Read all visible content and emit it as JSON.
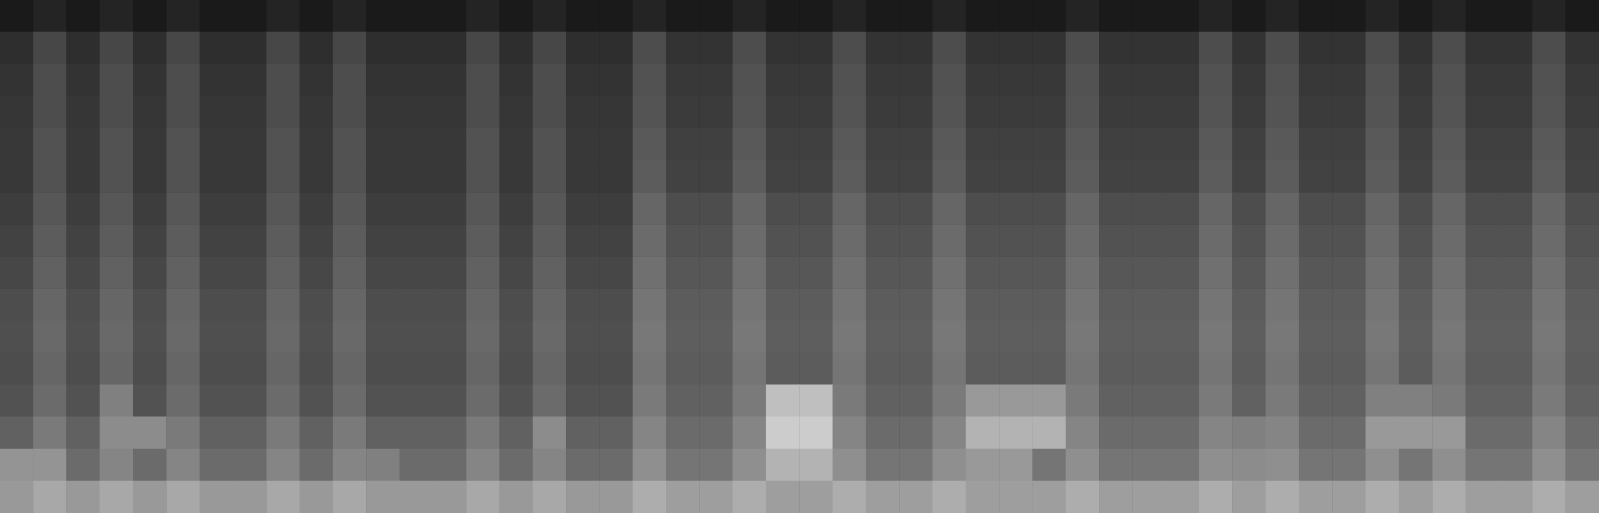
{
  "chart_data": {
    "type": "heatmap",
    "tick_labels": false,
    "colorbar_range": [
      0,
      100
    ],
    "cells": [
      [
        10,
        14,
        10,
        14,
        10,
        14,
        10,
        10,
        14,
        10,
        14,
        10,
        10,
        10,
        14,
        10,
        14,
        10,
        10,
        14,
        10,
        10,
        14,
        10,
        10,
        14,
        10,
        10,
        14,
        10,
        10,
        10,
        14,
        10,
        10,
        10,
        14,
        10,
        14,
        10,
        10,
        14,
        10,
        14,
        10,
        10,
        14,
        10
      ],
      [
        18,
        28,
        18,
        28,
        18,
        28,
        18,
        18,
        28,
        18,
        28,
        18,
        18,
        18,
        28,
        18,
        28,
        18,
        18,
        30,
        20,
        20,
        30,
        20,
        20,
        30,
        20,
        20,
        30,
        20,
        20,
        20,
        30,
        20,
        20,
        20,
        30,
        20,
        30,
        20,
        20,
        30,
        20,
        30,
        20,
        20,
        30,
        20
      ],
      [
        20,
        30,
        20,
        30,
        20,
        30,
        20,
        20,
        30,
        20,
        30,
        20,
        20,
        20,
        30,
        20,
        30,
        20,
        20,
        32,
        22,
        22,
        32,
        22,
        22,
        32,
        22,
        22,
        32,
        22,
        22,
        22,
        32,
        22,
        22,
        22,
        32,
        22,
        32,
        22,
        22,
        32,
        22,
        32,
        22,
        22,
        32,
        22
      ],
      [
        21,
        30,
        21,
        30,
        21,
        30,
        21,
        21,
        30,
        21,
        30,
        21,
        21,
        21,
        30,
        21,
        30,
        21,
        21,
        33,
        23,
        23,
        33,
        23,
        23,
        33,
        23,
        23,
        33,
        23,
        23,
        23,
        33,
        23,
        23,
        23,
        33,
        23,
        33,
        23,
        23,
        33,
        23,
        33,
        23,
        23,
        33,
        23
      ],
      [
        22,
        32,
        22,
        32,
        22,
        32,
        22,
        22,
        32,
        22,
        32,
        22,
        22,
        22,
        32,
        22,
        32,
        22,
        22,
        35,
        25,
        25,
        35,
        25,
        25,
        35,
        25,
        25,
        35,
        25,
        25,
        25,
        35,
        25,
        25,
        25,
        35,
        25,
        35,
        25,
        25,
        35,
        25,
        35,
        25,
        25,
        35,
        25
      ],
      [
        22,
        32,
        22,
        32,
        22,
        32,
        22,
        22,
        32,
        22,
        32,
        22,
        22,
        22,
        32,
        22,
        32,
        22,
        22,
        36,
        26,
        26,
        36,
        26,
        26,
        36,
        26,
        26,
        36,
        26,
        26,
        26,
        36,
        26,
        26,
        26,
        36,
        26,
        36,
        26,
        26,
        36,
        26,
        36,
        26,
        26,
        36,
        26
      ],
      [
        24,
        34,
        24,
        34,
        24,
        34,
        24,
        24,
        34,
        24,
        34,
        24,
        24,
        24,
        34,
        24,
        34,
        24,
        24,
        40,
        30,
        30,
        40,
        30,
        30,
        40,
        30,
        30,
        40,
        30,
        30,
        30,
        40,
        30,
        30,
        30,
        40,
        30,
        40,
        30,
        30,
        40,
        30,
        40,
        30,
        30,
        40,
        30
      ],
      [
        26,
        36,
        26,
        36,
        26,
        36,
        26,
        26,
        36,
        26,
        36,
        26,
        26,
        26,
        36,
        26,
        36,
        26,
        26,
        42,
        32,
        32,
        42,
        32,
        32,
        42,
        32,
        32,
        42,
        32,
        32,
        32,
        42,
        32,
        32,
        32,
        42,
        32,
        42,
        32,
        32,
        42,
        32,
        42,
        32,
        32,
        42,
        32
      ],
      [
        28,
        38,
        28,
        38,
        28,
        38,
        28,
        28,
        38,
        28,
        38,
        28,
        28,
        28,
        38,
        28,
        38,
        28,
        28,
        44,
        34,
        34,
        44,
        34,
        34,
        44,
        34,
        34,
        44,
        34,
        34,
        34,
        44,
        34,
        34,
        34,
        44,
        34,
        44,
        34,
        34,
        44,
        34,
        44,
        34,
        34,
        44,
        34
      ],
      [
        30,
        40,
        30,
        40,
        30,
        40,
        30,
        30,
        40,
        30,
        40,
        30,
        30,
        30,
        40,
        30,
        40,
        30,
        30,
        46,
        36,
        36,
        46,
        36,
        36,
        46,
        36,
        36,
        46,
        36,
        36,
        36,
        46,
        36,
        36,
        36,
        46,
        36,
        46,
        36,
        36,
        46,
        36,
        46,
        36,
        36,
        46,
        36
      ],
      [
        31,
        41,
        31,
        41,
        31,
        41,
        31,
        31,
        41,
        31,
        41,
        31,
        31,
        31,
        41,
        31,
        41,
        31,
        31,
        47,
        37,
        37,
        47,
        37,
        37,
        47,
        37,
        37,
        47,
        37,
        37,
        37,
        47,
        37,
        37,
        37,
        47,
        37,
        47,
        37,
        37,
        47,
        37,
        47,
        37,
        37,
        47,
        37
      ],
      [
        30,
        40,
        30,
        40,
        30,
        40,
        30,
        30,
        40,
        30,
        40,
        30,
        30,
        30,
        40,
        30,
        40,
        30,
        30,
        46,
        36,
        36,
        46,
        36,
        36,
        46,
        36,
        36,
        46,
        36,
        36,
        36,
        46,
        36,
        36,
        36,
        46,
        36,
        46,
        36,
        36,
        46,
        36,
        46,
        36,
        36,
        46,
        36
      ],
      [
        32,
        42,
        32,
        50,
        32,
        42,
        32,
        32,
        42,
        32,
        42,
        32,
        32,
        32,
        42,
        32,
        42,
        32,
        32,
        48,
        38,
        38,
        48,
        75,
        75,
        48,
        38,
        38,
        48,
        60,
        60,
        60,
        48,
        38,
        38,
        38,
        48,
        38,
        48,
        38,
        38,
        50,
        50,
        48,
        38,
        38,
        48,
        38
      ],
      [
        38,
        48,
        38,
        55,
        55,
        48,
        38,
        38,
        48,
        38,
        48,
        38,
        38,
        38,
        48,
        38,
        55,
        38,
        38,
        52,
        42,
        42,
        52,
        80,
        80,
        52,
        42,
        42,
        52,
        70,
        70,
        70,
        52,
        42,
        42,
        42,
        52,
        50,
        52,
        42,
        42,
        60,
        60,
        60,
        42,
        42,
        52,
        42
      ],
      [
        58,
        58,
        42,
        52,
        42,
        52,
        42,
        42,
        52,
        42,
        52,
        50,
        42,
        42,
        52,
        42,
        52,
        42,
        42,
        56,
        46,
        46,
        56,
        70,
        70,
        56,
        46,
        46,
        56,
        60,
        60,
        46,
        56,
        46,
        46,
        46,
        56,
        55,
        56,
        46,
        46,
        56,
        46,
        56,
        46,
        46,
        56,
        46
      ],
      [
        60,
        66,
        60,
        66,
        60,
        66,
        60,
        60,
        66,
        60,
        66,
        60,
        60,
        60,
        66,
        60,
        66,
        60,
        60,
        68,
        62,
        62,
        68,
        62,
        62,
        68,
        62,
        62,
        68,
        62,
        62,
        62,
        68,
        62,
        62,
        62,
        68,
        62,
        68,
        62,
        62,
        68,
        62,
        68,
        62,
        62,
        68,
        62
      ]
    ]
  }
}
